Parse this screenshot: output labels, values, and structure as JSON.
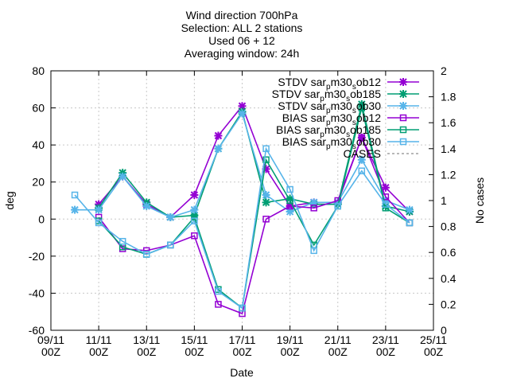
{
  "chart_data": {
    "type": "line",
    "title": [
      "Wind direction 700hPa",
      "Selection: ALL      2 stations",
      "Used 06 + 12",
      "Averaging window: 24h"
    ],
    "xlabel": "Date",
    "ylabel": "deg",
    "y2label": "No cases",
    "xlim": [
      "2015-11-09",
      "2015-11-25"
    ],
    "ylim": [
      -60,
      80
    ],
    "y2lim": [
      0,
      2
    ],
    "x_ticks": [
      {
        "date": "2015-11-09",
        "label": [
          "09/11",
          "00Z"
        ]
      },
      {
        "date": "2015-11-11",
        "label": [
          "11/11",
          "00Z"
        ]
      },
      {
        "date": "2015-11-13",
        "label": [
          "13/11",
          "00Z"
        ]
      },
      {
        "date": "2015-11-15",
        "label": [
          "15/11",
          "00Z"
        ]
      },
      {
        "date": "2015-11-17",
        "label": [
          "17/11",
          "00Z"
        ]
      },
      {
        "date": "2015-11-19",
        "label": [
          "19/11",
          "00Z"
        ]
      },
      {
        "date": "2015-11-21",
        "label": [
          "21/11",
          "00Z"
        ]
      },
      {
        "date": "2015-11-23",
        "label": [
          "23/11",
          "00Z"
        ]
      },
      {
        "date": "2015-11-25",
        "label": [
          "25/11",
          "00Z"
        ]
      }
    ],
    "y_ticks": [
      "-60",
      "-40",
      "-20",
      "0",
      "20",
      "40",
      "60",
      "80"
    ],
    "y2_ticks": [
      "0",
      "0.2",
      "0.4",
      "0.6",
      "0.8",
      "1",
      "1.2",
      "1.4",
      "1.6",
      "1.8",
      "2"
    ],
    "legend_position": "top-right",
    "series": [
      {
        "name": "STDV sar_pm30_sob12",
        "color": "#9400d3",
        "marker": "x",
        "x": [
          "2015-11-11",
          "2015-11-12",
          "2015-11-13",
          "2015-11-14",
          "2015-11-15",
          "2015-11-16",
          "2015-11-17",
          "2015-11-18",
          "2015-11-19",
          "2015-11-20",
          "2015-11-21",
          "2015-11-22",
          "2015-11-23",
          "2015-11-24"
        ],
        "y": [
          8,
          23,
          8,
          1,
          13,
          45,
          61,
          27,
          7,
          9,
          9,
          44,
          17,
          4
        ]
      },
      {
        "name": "STDV sar_pm30_sob185",
        "color": "#009e73",
        "marker": "x",
        "x": [
          "2015-11-11",
          "2015-11-12",
          "2015-11-13",
          "2015-11-14",
          "2015-11-15",
          "2015-11-16",
          "2015-11-17",
          "2015-11-18",
          "2015-11-19",
          "2015-11-20",
          "2015-11-21",
          "2015-11-22",
          "2015-11-23",
          "2015-11-24"
        ],
        "y": [
          6,
          25,
          9,
          1,
          2,
          38,
          58,
          9,
          11,
          8,
          8,
          62,
          7,
          4
        ]
      },
      {
        "name": "STDV sar_pm30_sob30",
        "color": "#56b4e9",
        "marker": "x",
        "x": [
          "2015-11-10",
          "2015-11-11",
          "2015-11-12",
          "2015-11-13",
          "2015-11-14",
          "2015-11-15",
          "2015-11-16",
          "2015-11-17",
          "2015-11-18",
          "2015-11-19",
          "2015-11-20",
          "2015-11-21",
          "2015-11-22",
          "2015-11-23",
          "2015-11-24"
        ],
        "y": [
          5,
          5,
          23,
          7,
          1,
          5,
          38,
          57,
          13,
          4,
          9,
          9,
          32,
          10,
          5
        ]
      },
      {
        "name": "BIAS sar_pm30_sob12",
        "color": "#9400d3",
        "marker": "square",
        "x": [
          "2015-11-11",
          "2015-11-12",
          "2015-11-13",
          "2015-11-14",
          "2015-11-15",
          "2015-11-16",
          "2015-11-17",
          "2015-11-18",
          "2015-11-19",
          "2015-11-20",
          "2015-11-21",
          "2015-11-22",
          "2015-11-23",
          "2015-11-24"
        ],
        "y": [
          1,
          -16,
          -17,
          -14,
          -9,
          -46,
          -51,
          0,
          7,
          6,
          10,
          44,
          12,
          -2
        ]
      },
      {
        "name": "BIAS sar_pm30_sob185",
        "color": "#009e73",
        "marker": "square",
        "x": [
          "2015-11-11",
          "2015-11-12",
          "2015-11-13",
          "2015-11-14",
          "2015-11-15",
          "2015-11-16",
          "2015-11-17",
          "2015-11-18",
          "2015-11-19",
          "2015-11-20",
          "2015-11-21",
          "2015-11-22",
          "2015-11-23",
          "2015-11-24"
        ],
        "y": [
          -1,
          -15,
          -19,
          -14,
          1,
          -38,
          -48,
          32,
          10,
          -14,
          7,
          60,
          6,
          -2
        ]
      },
      {
        "name": "BIAS sar_pm30_sob30",
        "color": "#56b4e9",
        "marker": "square",
        "x": [
          "2015-11-10",
          "2015-11-11",
          "2015-11-12",
          "2015-11-13",
          "2015-11-14",
          "2015-11-15",
          "2015-11-16",
          "2015-11-17",
          "2015-11-18",
          "2015-11-19",
          "2015-11-20",
          "2015-11-21",
          "2015-11-22",
          "2015-11-23",
          "2015-11-24"
        ],
        "y": [
          13,
          -2,
          -12,
          -19,
          -14,
          -1,
          -39,
          -48,
          38,
          16,
          -17,
          7,
          26,
          8,
          -2
        ]
      },
      {
        "name": "CASES",
        "color": "#a0a0a0",
        "dash": "dashed",
        "axis": "y2",
        "x": [],
        "y": []
      }
    ]
  }
}
